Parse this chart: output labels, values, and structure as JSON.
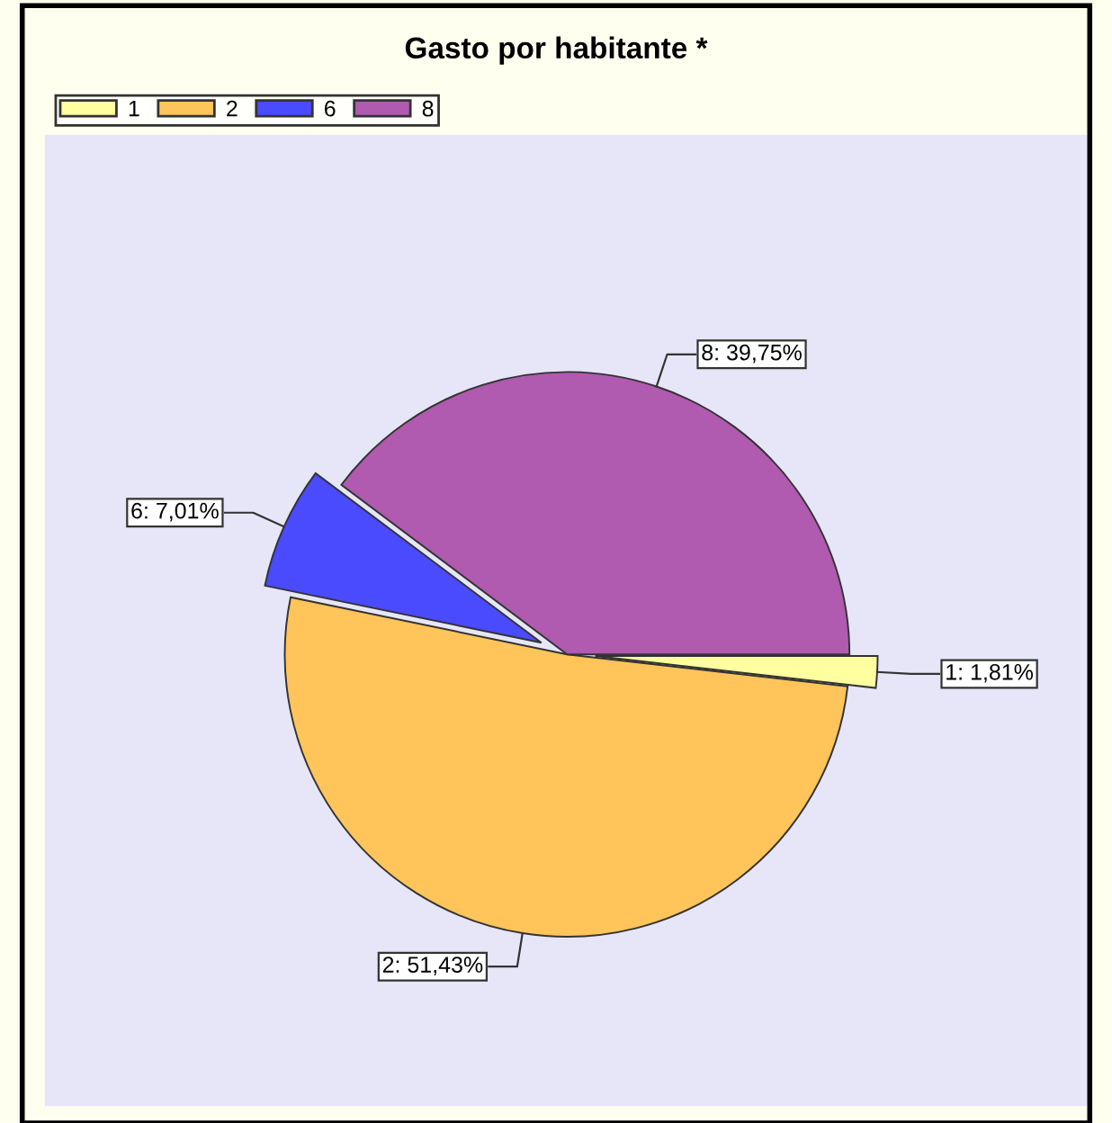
{
  "chart_data": {
    "type": "pie",
    "title": "Gasto por habitante *",
    "categories": [
      "1",
      "2",
      "6",
      "8"
    ],
    "values": [
      1.81,
      51.43,
      7.01,
      39.75
    ],
    "colors": [
      "#ffffa0",
      "#ffc45a",
      "#4a4aff",
      "#b05ab0"
    ],
    "value_labels": [
      "1: 1,81%",
      "2: 51,43%",
      "6: 7,01%",
      "8: 39,75%"
    ],
    "legend": "top left"
  }
}
